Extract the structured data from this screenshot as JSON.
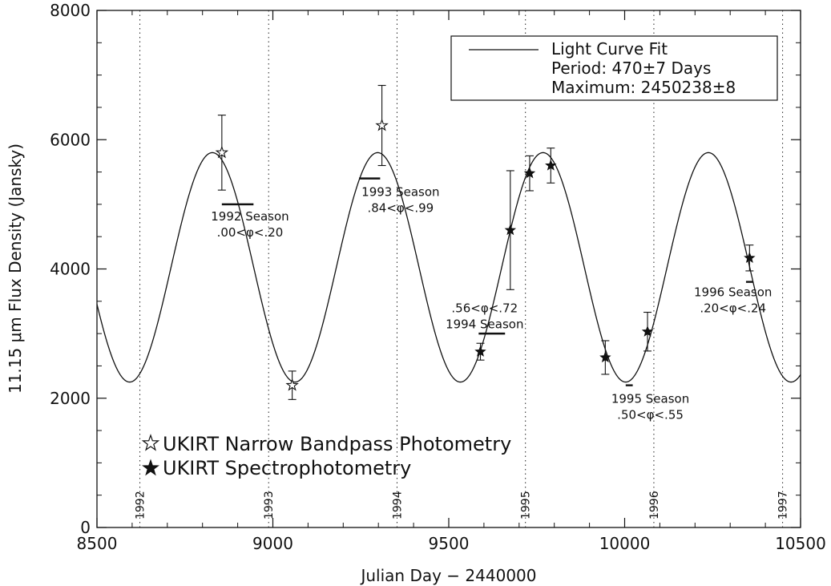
{
  "chart_data": {
    "type": "scatter",
    "xlabel": "Julian Day − 2440000",
    "ylabel": "11.15 μm Flux Density (Jansky)",
    "xlim": [
      8500,
      10500
    ],
    "ylim": [
      0,
      8000
    ],
    "xticks": [
      8500,
      9000,
      9500,
      10000,
      10500
    ],
    "yticks": [
      0,
      2000,
      4000,
      6000,
      8000
    ],
    "fit": {
      "label": "Light Curve Fit",
      "period_text": "Period: 470±7 Days",
      "maximum_text": "Maximum: 2450238±8",
      "period": 470,
      "max_jd": 10238,
      "mean": 4025,
      "amplitude": 1775
    },
    "year_markers": [
      {
        "label": "1992",
        "x": 8622
      },
      {
        "label": "1993",
        "x": 8988
      },
      {
        "label": "1994",
        "x": 9353
      },
      {
        "label": "1995",
        "x": 9718
      },
      {
        "label": "1996",
        "x": 10083
      },
      {
        "label": "1997",
        "x": 10449
      }
    ],
    "series": [
      {
        "name": "UKIRT Narrow Bandpass Photometry",
        "marker": "open-star",
        "points": [
          {
            "x": 8855,
            "y": 5800,
            "yerr": 580
          },
          {
            "x": 9055,
            "y": 2200,
            "yerr": 220
          },
          {
            "x": 9310,
            "y": 6220,
            "yerr": 620
          }
        ]
      },
      {
        "name": "UKIRT Spectrophotometry",
        "marker": "filled-star",
        "points": [
          {
            "x": 9590,
            "y": 2720,
            "yerr": 130
          },
          {
            "x": 9675,
            "y": 4600,
            "yerr": 920
          },
          {
            "x": 9730,
            "y": 5480,
            "yerr": 270
          },
          {
            "x": 9790,
            "y": 5600,
            "yerr": 270
          },
          {
            "x": 9945,
            "y": 2630,
            "yerr": 260
          },
          {
            "x": 10065,
            "y": 3030,
            "yerr": 300
          },
          {
            "x": 10355,
            "y": 4170,
            "yerr": 200
          }
        ]
      }
    ],
    "season_bars": [
      {
        "x1": 8855,
        "x2": 8945,
        "y": 5000
      },
      {
        "x1": 9245,
        "x2": 9305,
        "y": 5400
      },
      {
        "x1": 9585,
        "x2": 9660,
        "y": 3000
      },
      {
        "x1": 10003,
        "x2": 10023,
        "y": 2200
      },
      {
        "x1": 10345,
        "x2": 10365,
        "y": 3800
      }
    ],
    "annotations": [
      {
        "line1": "1992 Season",
        "line2": ".00<φ<.20",
        "x": 8935,
        "y": 4750
      },
      {
        "line1": "1993 Season",
        "line2": ".84<φ<.99",
        "x": 9363,
        "y": 5130
      },
      {
        "line1": ".56<φ<.72",
        "line2": "1994 Season",
        "x": 9602,
        "y": 3330
      },
      {
        "line1": "1995 Season",
        "line2": ".50<φ<.55",
        "x": 10073,
        "y": 1930
      },
      {
        "line1": "1996 Season",
        "line2": ".20<φ<.24",
        "x": 10308,
        "y": 3580
      }
    ],
    "legend_position": "bottom-left",
    "fit_legend_position": "top-right",
    "grid": false
  }
}
